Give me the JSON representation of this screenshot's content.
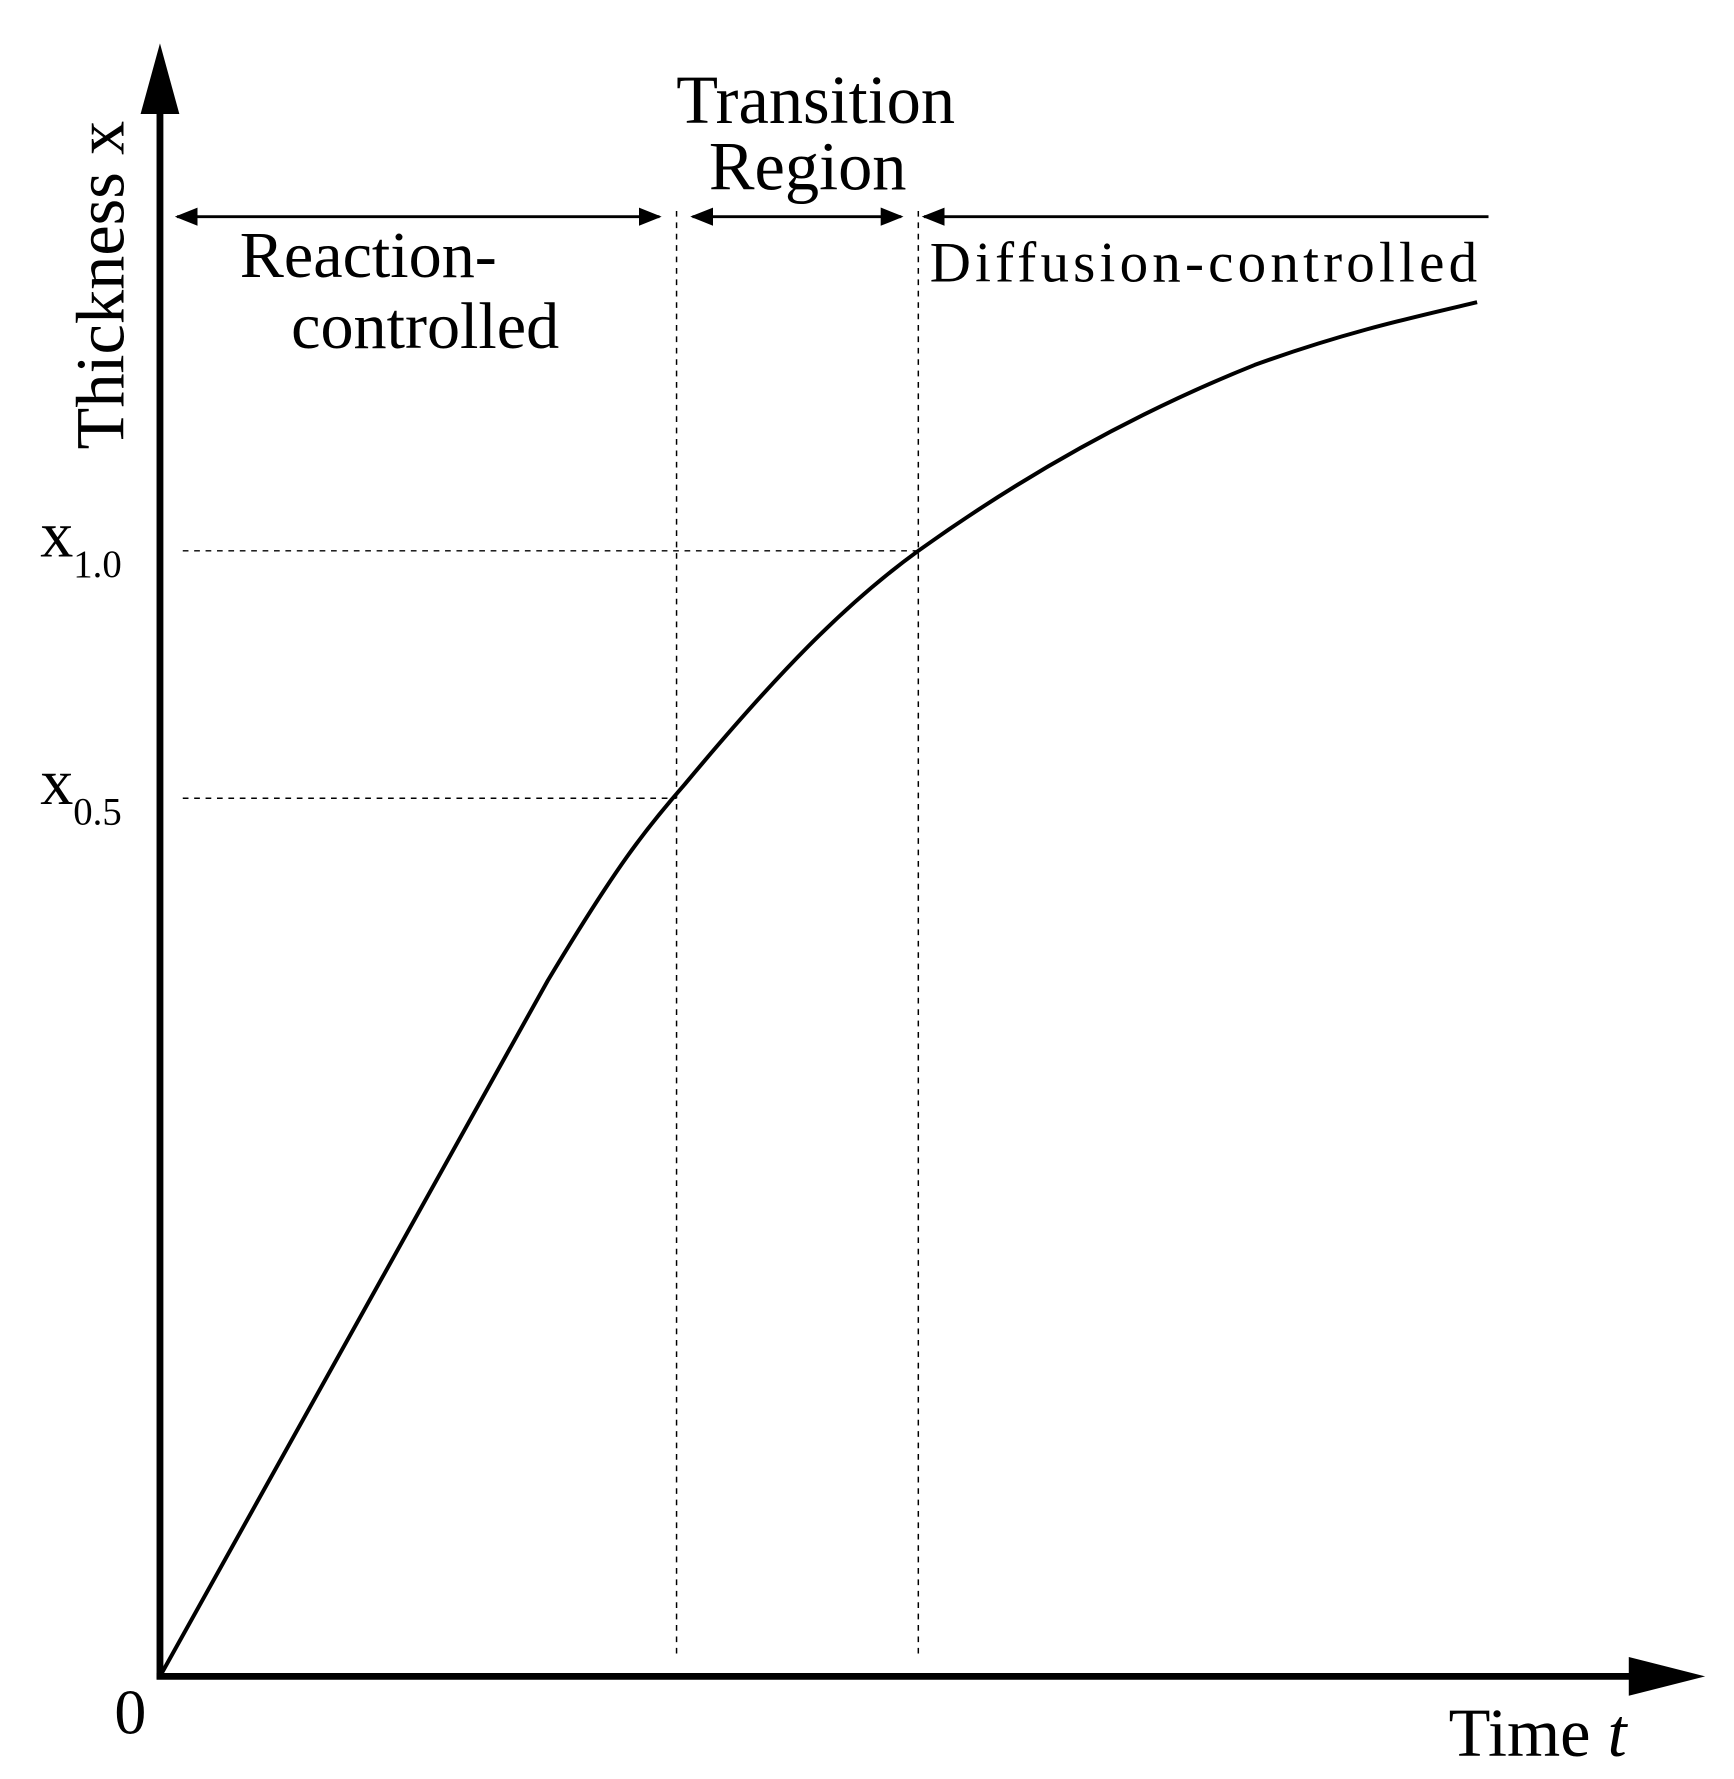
{
  "title_region_transition": [
    "Transition",
    "Region"
  ],
  "region_reaction": [
    "Reaction-",
    "controlled"
  ],
  "region_diffusion": "Diffusion-controlled",
  "y_axis_label": {
    "text": "Thickness",
    "variable": "x"
  },
  "x_axis_label": {
    "text": "Time",
    "variable": "t"
  },
  "origin_label": "0",
  "marks": [
    {
      "symbol": "x",
      "subscript": "1.0"
    },
    {
      "symbol": "x",
      "subscript": "0.5"
    }
  ]
}
